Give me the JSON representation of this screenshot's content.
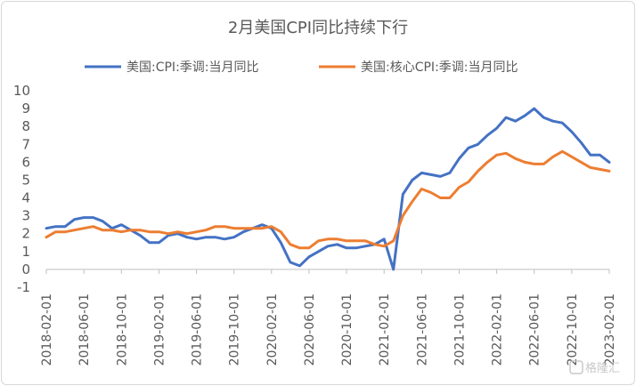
{
  "chart_data": {
    "type": "line",
    "title": "2月美国CPI同比持续下行",
    "ylim": [
      -1,
      10
    ],
    "yticks": [
      -1,
      0,
      1,
      2,
      3,
      4,
      5,
      6,
      7,
      8,
      9,
      10
    ],
    "grid": false,
    "legend_position": "top",
    "x": [
      "2018-02-01",
      "2018-03-01",
      "2018-04-01",
      "2018-05-01",
      "2018-06-01",
      "2018-07-01",
      "2018-08-01",
      "2018-09-01",
      "2018-10-01",
      "2018-11-01",
      "2018-12-01",
      "2019-01-01",
      "2019-02-01",
      "2019-03-01",
      "2019-04-01",
      "2019-05-01",
      "2019-06-01",
      "2019-07-01",
      "2019-08-01",
      "2019-09-01",
      "2019-10-01",
      "2019-11-01",
      "2019-12-01",
      "2020-01-01",
      "2020-02-01",
      "2020-03-01",
      "2020-04-01",
      "2020-05-01",
      "2020-06-01",
      "2020-07-01",
      "2020-08-01",
      "2020-09-01",
      "2020-10-01",
      "2020-11-01",
      "2020-12-01",
      "2021-01-01",
      "2021-02-01",
      "2021-03-01",
      "2021-04-01",
      "2021-05-01",
      "2021-06-01",
      "2021-07-01",
      "2021-08-01",
      "2021-09-01",
      "2021-10-01",
      "2021-11-01",
      "2021-12-01",
      "2022-01-01",
      "2022-02-01",
      "2022-03-01",
      "2022-04-01",
      "2022-05-01",
      "2022-06-01",
      "2022-07-01",
      "2022-08-01",
      "2022-09-01",
      "2022-10-01",
      "2022-11-01",
      "2022-12-01",
      "2023-01-01",
      "2023-02-01"
    ],
    "xtick_labels": [
      "2018-02-01",
      "2018-06-01",
      "2018-10-01",
      "2019-02-01",
      "2019-06-01",
      "2019-10-01",
      "2020-02-01",
      "2020-06-01",
      "2020-10-01",
      "2021-02-01",
      "2021-06-01",
      "2021-10-01",
      "2022-02-01",
      "2022-06-01",
      "2022-10-01",
      "2023-02-01"
    ],
    "series": [
      {
        "name": "美国:CPI:季调:当月同比",
        "color": "#4472C4",
        "values": [
          2.3,
          2.4,
          2.4,
          2.8,
          2.9,
          2.9,
          2.7,
          2.3,
          2.5,
          2.2,
          1.9,
          1.5,
          1.5,
          1.9,
          2.0,
          1.8,
          1.7,
          1.8,
          1.8,
          1.7,
          1.8,
          2.1,
          2.3,
          2.5,
          2.3,
          1.5,
          0.4,
          0.2,
          0.7,
          1.0,
          1.3,
          1.4,
          1.2,
          1.2,
          1.3,
          1.4,
          1.7,
          0.0,
          4.2,
          5.0,
          5.4,
          5.3,
          5.2,
          5.4,
          6.2,
          6.8,
          7.0,
          7.5,
          7.9,
          8.5,
          8.3,
          8.6,
          9.0,
          8.5,
          8.3,
          8.2,
          7.7,
          7.1,
          6.4,
          6.4,
          6.0
        ]
      },
      {
        "name": "美国:核心CPI:季调:当月同比",
        "color": "#ED7D31",
        "values": [
          1.8,
          2.1,
          2.1,
          2.2,
          2.3,
          2.4,
          2.2,
          2.2,
          2.1,
          2.2,
          2.2,
          2.1,
          2.1,
          2.0,
          2.1,
          2.0,
          2.1,
          2.2,
          2.4,
          2.4,
          2.3,
          2.3,
          2.3,
          2.3,
          2.4,
          2.1,
          1.4,
          1.2,
          1.2,
          1.6,
          1.7,
          1.7,
          1.6,
          1.6,
          1.6,
          1.4,
          1.3,
          1.6,
          3.0,
          3.8,
          4.5,
          4.3,
          4.0,
          4.0,
          4.6,
          4.9,
          5.5,
          6.0,
          6.4,
          6.5,
          6.2,
          6.0,
          5.9,
          5.9,
          6.3,
          6.6,
          6.3,
          6.0,
          5.7,
          5.6,
          5.5
        ]
      }
    ]
  },
  "watermark": "格隆汇"
}
